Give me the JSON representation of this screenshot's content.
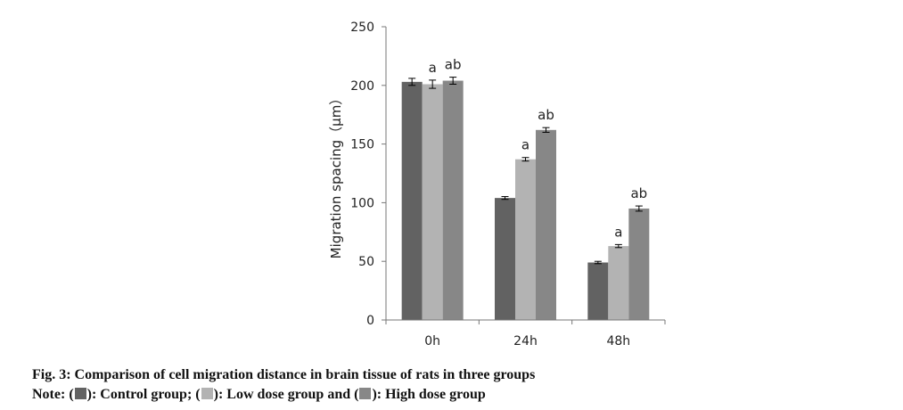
{
  "chart_data": {
    "type": "bar",
    "categories": [
      "0h",
      "24h",
      "48h"
    ],
    "series": [
      {
        "name": "Control group",
        "color": "#626262",
        "values": [
          203,
          104,
          49
        ],
        "errors": [
          3,
          1.2,
          1
        ],
        "labels": [
          "",
          "",
          ""
        ]
      },
      {
        "name": "Low dose group",
        "color": "#b3b3b3",
        "values": [
          201,
          137,
          63
        ],
        "errors": [
          3.5,
          1.5,
          1.3
        ],
        "labels": [
          "a",
          "a",
          "a"
        ]
      },
      {
        "name": "High dose group",
        "color": "#878787",
        "values": [
          204,
          162,
          95
        ],
        "errors": [
          3,
          2,
          2.2
        ],
        "labels": [
          "ab",
          "ab",
          "ab"
        ]
      }
    ],
    "ylabel": "Migration spacing（μm）",
    "xlabel": "",
    "ylim": [
      0,
      250
    ],
    "yticks": [
      0,
      50,
      100,
      150,
      200,
      250
    ],
    "grid": false
  },
  "caption": {
    "title": "Fig. 3: Comparison of cell migration distance in brain tissue of rats in three groups",
    "note_prefix": "Note: (",
    "note_control": "): Control group; (",
    "note_low": "): Low dose group and (",
    "note_high": "): High dose group"
  }
}
